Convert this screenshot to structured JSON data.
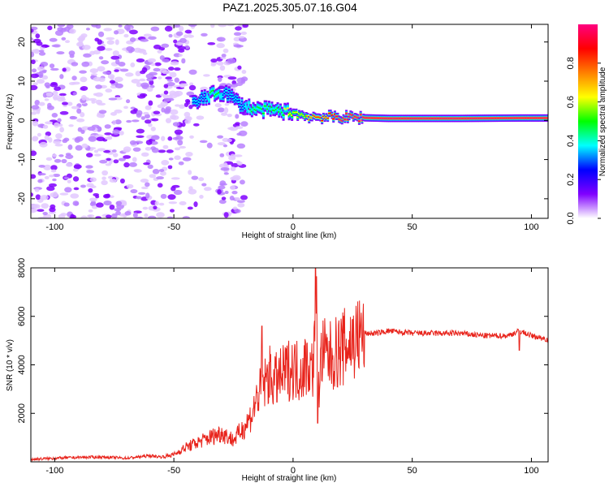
{
  "chart_data": [
    {
      "type": "heatmap",
      "title": "PAZ1.2025.305.07.16.G04",
      "xlabel": "Height of straight line (km)",
      "ylabel": "Frequency (Hz)",
      "xlim": [
        -110,
        107
      ],
      "ylim": [
        -25,
        24.5
      ],
      "xticks": [
        -100,
        -50,
        0,
        50,
        100
      ],
      "yticks": [
        -20,
        -10,
        0,
        10,
        20
      ],
      "xtick_labels": [
        "-100",
        "-50",
        "0",
        "50",
        "100"
      ],
      "ytick_labels": [
        "-20",
        "-10",
        "0",
        "10",
        "20"
      ],
      "colorbar": {
        "label": "Normalized spectral amplitude",
        "ticks": [
          0.0,
          0.2,
          0.4,
          0.6,
          0.8
        ],
        "tick_labels": [
          "0.0",
          "0.2",
          "0.4",
          "0.6",
          "0.8"
        ],
        "colors": [
          "#ffffff",
          "#8000ff",
          "#0000ff",
          "#00ffff",
          "#00ff00",
          "#ffff00",
          "#ff8000",
          "#ff0000",
          "#ff0080"
        ]
      },
      "noise_region": {
        "x_range": [
          -110,
          -20
        ],
        "amplitude": 0.1
      },
      "signal_track": [
        {
          "x": -42,
          "freq": 4.2,
          "amp": 0.25
        },
        {
          "x": -38,
          "freq": 5.5,
          "amp": 0.3
        },
        {
          "x": -33,
          "freq": 6.8,
          "amp": 0.35
        },
        {
          "x": -28,
          "freq": 7.0,
          "amp": 0.3
        },
        {
          "x": -22,
          "freq": 4.0,
          "amp": 0.3
        },
        {
          "x": -16,
          "freq": 2.8,
          "amp": 0.35
        },
        {
          "x": -8,
          "freq": 2.6,
          "amp": 0.4
        },
        {
          "x": 0,
          "freq": 2.0,
          "amp": 0.5
        },
        {
          "x": 4,
          "freq": 1.2,
          "amp": 0.55
        },
        {
          "x": 9,
          "freq": 0.9,
          "amp": 0.8
        },
        {
          "x": 20,
          "freq": 0.8,
          "amp": 0.9
        },
        {
          "x": 40,
          "freq": 0.5,
          "amp": 0.95
        },
        {
          "x": 70,
          "freq": 0.5,
          "amp": 0.95
        },
        {
          "x": 95,
          "freq": 0.6,
          "amp": 0.95
        },
        {
          "x": 107,
          "freq": 0.6,
          "amp": 0.9
        }
      ]
    },
    {
      "type": "line",
      "xlabel": "Height of straight line (km)",
      "ylabel": "SNR (10 * v/v)",
      "xlim": [
        -110,
        107
      ],
      "ylim": [
        0,
        8000
      ],
      "xticks": [
        -100,
        -50,
        0,
        50,
        100
      ],
      "yticks": [
        2000,
        4000,
        6000,
        8000
      ],
      "xtick_labels": [
        "-100",
        "-50",
        "0",
        "50",
        "100"
      ],
      "ytick_labels": [
        "2000",
        "4000",
        "6000",
        "8000"
      ],
      "color": "#e8231b",
      "series": [
        {
          "name": "SNR",
          "x": [
            -110,
            -100,
            -90,
            -80,
            -70,
            -60,
            -55,
            -50,
            -45,
            -40,
            -35,
            -30,
            -25,
            -20,
            -17,
            -15,
            -12,
            -10,
            -8,
            -5,
            -2,
            0,
            3,
            6,
            8,
            9,
            10,
            11,
            12,
            15,
            20,
            25,
            30,
            35,
            40,
            50,
            60,
            70,
            80,
            90,
            95,
            100,
            107
          ],
          "y": [
            100,
            150,
            180,
            200,
            150,
            250,
            200,
            300,
            600,
            800,
            1000,
            1200,
            900,
            1500,
            2000,
            2700,
            3200,
            3600,
            3300,
            3500,
            3800,
            3900,
            3700,
            4100,
            3800,
            4600,
            6000,
            3000,
            4500,
            4300,
            4600,
            5000,
            5300,
            5300,
            5400,
            5300,
            5300,
            5300,
            5200,
            5200,
            5400,
            5200,
            5050
          ],
          "spikes": [
            {
              "x": -13,
              "y": 5600
            },
            {
              "x": 9.5,
              "y": 8000
            },
            {
              "x": 10.3,
              "y": 1600
            },
            {
              "x": 95,
              "y": 4600
            }
          ]
        }
      ]
    }
  ]
}
